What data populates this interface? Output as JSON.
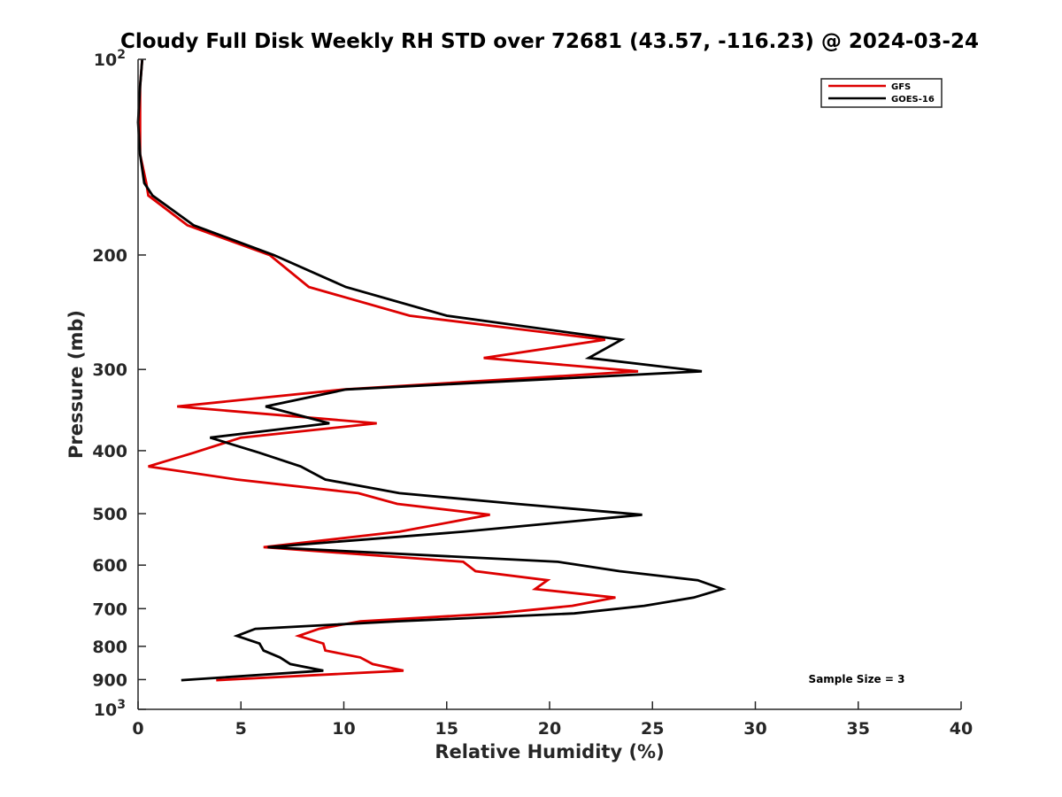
{
  "chart_data": {
    "type": "line",
    "title": "Cloudy Full Disk Weekly RH STD over 72681 (43.57, -116.23) @ 2024-03-24",
    "xlabel": "Relative Humidity (%)",
    "ylabel": "Pressure (mb)",
    "xlim": [
      0,
      40
    ],
    "ylim": [
      1000,
      100
    ],
    "yscale": "log",
    "y_reversed": true,
    "grid": false,
    "legend_position": "top-right",
    "annotation": "Sample Size = 3",
    "x_ticks": [
      {
        "value": 0,
        "label": "0"
      },
      {
        "value": 5,
        "label": "5"
      },
      {
        "value": 10,
        "label": "10"
      },
      {
        "value": 15,
        "label": "15"
      },
      {
        "value": 20,
        "label": "20"
      },
      {
        "value": 25,
        "label": "25"
      },
      {
        "value": 30,
        "label": "30"
      },
      {
        "value": 35,
        "label": "35"
      },
      {
        "value": 40,
        "label": "40"
      }
    ],
    "y_ticks": [
      {
        "value": 100,
        "label": "10",
        "sup": "2"
      },
      {
        "value": 200,
        "label": "200"
      },
      {
        "value": 300,
        "label": "300"
      },
      {
        "value": 400,
        "label": "400"
      },
      {
        "value": 500,
        "label": "500"
      },
      {
        "value": 600,
        "label": "600"
      },
      {
        "value": 700,
        "label": "700"
      },
      {
        "value": 800,
        "label": "800"
      },
      {
        "value": 900,
        "label": "900"
      },
      {
        "value": 1000,
        "label": "10",
        "sup": "3"
      }
    ],
    "series": [
      {
        "name": "GFS",
        "color": "#dd0000",
        "points": [
          [
            0.2,
            100
          ],
          [
            0.1,
            110
          ],
          [
            0.1,
            125
          ],
          [
            0.1,
            140
          ],
          [
            0.4,
            155
          ],
          [
            0.5,
            162
          ],
          [
            2.4,
            180
          ],
          [
            6.4,
            200
          ],
          [
            8.3,
            224
          ],
          [
            13.2,
            248
          ],
          [
            22.7,
            270
          ],
          [
            16.8,
            288
          ],
          [
            24.3,
            302
          ],
          [
            10.0,
            322
          ],
          [
            1.9,
            342
          ],
          [
            11.6,
            363
          ],
          [
            5.0,
            382
          ],
          [
            2.7,
            403
          ],
          [
            0.5,
            423
          ],
          [
            4.8,
            443
          ],
          [
            10.7,
            465
          ],
          [
            12.6,
            483
          ],
          [
            17.1,
            502
          ],
          [
            12.7,
            533
          ],
          [
            6.1,
            563
          ],
          [
            15.8,
            593
          ],
          [
            16.4,
            613
          ],
          [
            19.9,
            633
          ],
          [
            19.3,
            653
          ],
          [
            23.2,
            673
          ],
          [
            21.1,
            693
          ],
          [
            17.4,
            712
          ],
          [
            10.8,
            732
          ],
          [
            8.8,
            752
          ],
          [
            7.8,
            771
          ],
          [
            9.0,
            792
          ],
          [
            9.1,
            812
          ],
          [
            10.8,
            832
          ],
          [
            11.4,
            852
          ],
          [
            12.9,
            872
          ],
          [
            3.8,
            902
          ]
        ]
      },
      {
        "name": "GOES-16",
        "color": "#000000",
        "points": [
          [
            0.2,
            100
          ],
          [
            0.1,
            110
          ],
          [
            0.0,
            125
          ],
          [
            0.1,
            140
          ],
          [
            0.3,
            155
          ],
          [
            0.7,
            162
          ],
          [
            2.7,
            180
          ],
          [
            6.6,
            200
          ],
          [
            10.1,
            224
          ],
          [
            15.0,
            248
          ],
          [
            23.5,
            270
          ],
          [
            21.9,
            288
          ],
          [
            27.4,
            302
          ],
          [
            10.1,
            322
          ],
          [
            6.2,
            342
          ],
          [
            9.3,
            363
          ],
          [
            3.5,
            382
          ],
          [
            5.9,
            403
          ],
          [
            7.9,
            423
          ],
          [
            9.1,
            443
          ],
          [
            12.7,
            465
          ],
          [
            18.4,
            483
          ],
          [
            24.5,
            502
          ],
          [
            15.8,
            533
          ],
          [
            6.3,
            563
          ],
          [
            20.4,
            593
          ],
          [
            23.4,
            613
          ],
          [
            27.2,
            633
          ],
          [
            28.4,
            653
          ],
          [
            27.0,
            673
          ],
          [
            24.6,
            693
          ],
          [
            21.2,
            712
          ],
          [
            12.6,
            732
          ],
          [
            5.7,
            752
          ],
          [
            4.8,
            771
          ],
          [
            5.9,
            792
          ],
          [
            6.1,
            812
          ],
          [
            6.9,
            832
          ],
          [
            7.4,
            852
          ],
          [
            9.0,
            872
          ],
          [
            2.1,
            902
          ]
        ]
      }
    ]
  }
}
